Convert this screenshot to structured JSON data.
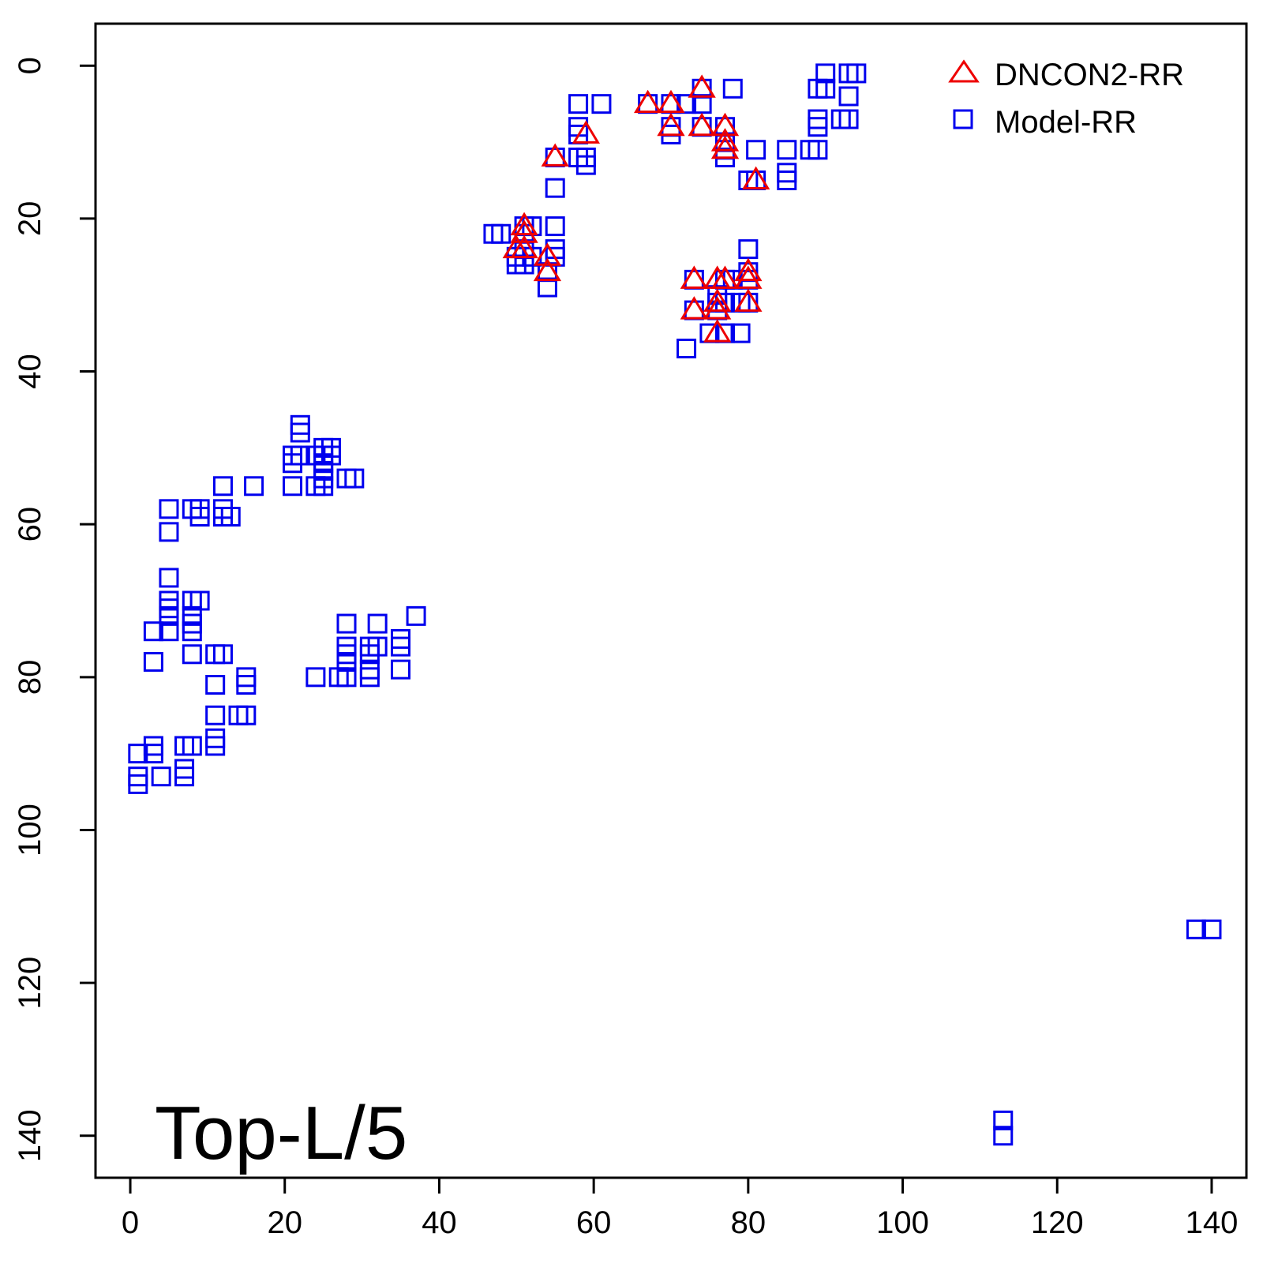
{
  "chart_data": {
    "type": "scatter",
    "title": "",
    "xlabel": "",
    "ylabel": "",
    "xlim": [
      -4.5,
      144.5
    ],
    "ylim": [
      145.5,
      -5.5
    ],
    "y_reversed": true,
    "x_ticks": [
      0,
      20,
      40,
      60,
      80,
      100,
      120,
      140
    ],
    "y_ticks": [
      0,
      20,
      40,
      60,
      80,
      100,
      120,
      140
    ],
    "grid": false,
    "legend_position": "top-right",
    "annotation": "Top-L/5",
    "series": [
      {
        "name": "Model-RR",
        "marker": "square",
        "color": "#0000ee",
        "points": [
          [
            58,
            5
          ],
          [
            61,
            5
          ],
          [
            58,
            8
          ],
          [
            58,
            9
          ],
          [
            58,
            12
          ],
          [
            59,
            12
          ],
          [
            59,
            13
          ],
          [
            55,
            12
          ],
          [
            55,
            16
          ],
          [
            47,
            22
          ],
          [
            48,
            22
          ],
          [
            50,
            25
          ],
          [
            50,
            26
          ],
          [
            51,
            21
          ],
          [
            51,
            22
          ],
          [
            51,
            24
          ],
          [
            51,
            26
          ],
          [
            52,
            21
          ],
          [
            52,
            25
          ],
          [
            55,
            21
          ],
          [
            55,
            24
          ],
          [
            55,
            25
          ],
          [
            54,
            27
          ],
          [
            54,
            29
          ],
          [
            67,
            5
          ],
          [
            70,
            5
          ],
          [
            72,
            5
          ],
          [
            70,
            8
          ],
          [
            70,
            9
          ],
          [
            74,
            3
          ],
          [
            74,
            5
          ],
          [
            74,
            8
          ],
          [
            78,
            3
          ],
          [
            77,
            8
          ],
          [
            77,
            10
          ],
          [
            77,
            11
          ],
          [
            77,
            12
          ],
          [
            81,
            11
          ],
          [
            80,
            15
          ],
          [
            81,
            15
          ],
          [
            85,
            11
          ],
          [
            85,
            14
          ],
          [
            85,
            15
          ],
          [
            88,
            11
          ],
          [
            89,
            11
          ],
          [
            89,
            3
          ],
          [
            90,
            3
          ],
          [
            90,
            1
          ],
          [
            89,
            7
          ],
          [
            89,
            8
          ],
          [
            93,
            1
          ],
          [
            94,
            1
          ],
          [
            93,
            4
          ],
          [
            93,
            7
          ],
          [
            92,
            7
          ],
          [
            73,
            28
          ],
          [
            73,
            32
          ],
          [
            77,
            28
          ],
          [
            78,
            28
          ],
          [
            76,
            30
          ],
          [
            76,
            31
          ],
          [
            76,
            32
          ],
          [
            77,
            31
          ],
          [
            75,
            35
          ],
          [
            77,
            35
          ],
          [
            80,
            24
          ],
          [
            80,
            27
          ],
          [
            80,
            28
          ],
          [
            79,
            31
          ],
          [
            80,
            31
          ],
          [
            79,
            35
          ],
          [
            72,
            37
          ],
          [
            22,
            47
          ],
          [
            22,
            48
          ],
          [
            21,
            51
          ],
          [
            21,
            52
          ],
          [
            22,
            51
          ],
          [
            21,
            55
          ],
          [
            24,
            51
          ],
          [
            25,
            50
          ],
          [
            25,
            51
          ],
          [
            26,
            50
          ],
          [
            26,
            51
          ],
          [
            25,
            52
          ],
          [
            25,
            53
          ],
          [
            25,
            54
          ],
          [
            24,
            55
          ],
          [
            25,
            55
          ],
          [
            28,
            54
          ],
          [
            29,
            54
          ],
          [
            16,
            55
          ],
          [
            12,
            55
          ],
          [
            12,
            58
          ],
          [
            12,
            59
          ],
          [
            13,
            59
          ],
          [
            8,
            58
          ],
          [
            9,
            58
          ],
          [
            9,
            59
          ],
          [
            5,
            58
          ],
          [
            5,
            61
          ],
          [
            5,
            67
          ],
          [
            5,
            70
          ],
          [
            5,
            71
          ],
          [
            5,
            72
          ],
          [
            5,
            74
          ],
          [
            8,
            70
          ],
          [
            9,
            70
          ],
          [
            8,
            72
          ],
          [
            8,
            73
          ],
          [
            8,
            74
          ],
          [
            8,
            77
          ],
          [
            3,
            74
          ],
          [
            3,
            78
          ],
          [
            11,
            77
          ],
          [
            12,
            77
          ],
          [
            11,
            81
          ],
          [
            15,
            80
          ],
          [
            15,
            81
          ],
          [
            11,
            85
          ],
          [
            14,
            85
          ],
          [
            15,
            85
          ],
          [
            11,
            88
          ],
          [
            11,
            89
          ],
          [
            7,
            89
          ],
          [
            8,
            89
          ],
          [
            3,
            89
          ],
          [
            3,
            90
          ],
          [
            1,
            90
          ],
          [
            1,
            93
          ],
          [
            1,
            94
          ],
          [
            4,
            93
          ],
          [
            7,
            92
          ],
          [
            7,
            93
          ],
          [
            28,
            73
          ],
          [
            32,
            73
          ],
          [
            37,
            72
          ],
          [
            35,
            75
          ],
          [
            35,
            76
          ],
          [
            35,
            79
          ],
          [
            31,
            76
          ],
          [
            32,
            76
          ],
          [
            31,
            77
          ],
          [
            31,
            79
          ],
          [
            31,
            80
          ],
          [
            28,
            76
          ],
          [
            28,
            77
          ],
          [
            28,
            78
          ],
          [
            28,
            80
          ],
          [
            27,
            80
          ],
          [
            24,
            80
          ],
          [
            113,
            138
          ],
          [
            113,
            140
          ],
          [
            138,
            113
          ],
          [
            140,
            113
          ]
        ]
      },
      {
        "name": "DNCON2-RR",
        "marker": "triangle",
        "color": "#ee0000",
        "points": [
          [
            55,
            12
          ],
          [
            59,
            9
          ],
          [
            51,
            21
          ],
          [
            51,
            22
          ],
          [
            50,
            24
          ],
          [
            51,
            24
          ],
          [
            54,
            25
          ],
          [
            54,
            27
          ],
          [
            67,
            5
          ],
          [
            70,
            5
          ],
          [
            70,
            8
          ],
          [
            74,
            3
          ],
          [
            74,
            8
          ],
          [
            77,
            8
          ],
          [
            77,
            10
          ],
          [
            77,
            11
          ],
          [
            81,
            15
          ],
          [
            73,
            28
          ],
          [
            73,
            32
          ],
          [
            76,
            28
          ],
          [
            77,
            28
          ],
          [
            76,
            31
          ],
          [
            76,
            32
          ],
          [
            76,
            35
          ],
          [
            80,
            27
          ],
          [
            80,
            28
          ],
          [
            80,
            31
          ]
        ]
      }
    ]
  }
}
